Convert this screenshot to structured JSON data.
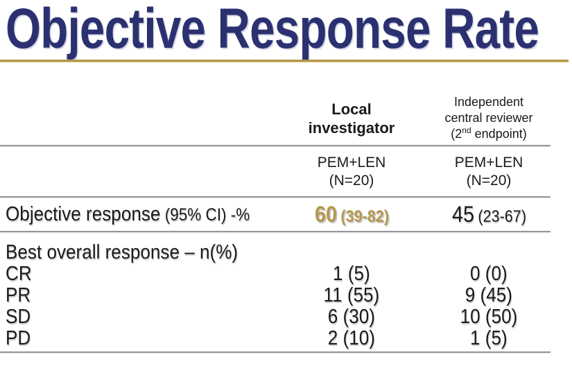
{
  "slide": {
    "title": "Objective Response Rate",
    "colors": {
      "title_navy": "#2b3170",
      "gold_line": "#b2964a",
      "gold_value": "#b5974e",
      "table_line_gray": "#979797"
    }
  },
  "table": {
    "col_headers": {
      "local": {
        "line1": "Local",
        "line2": "investigator"
      },
      "central": {
        "line1": "Independent",
        "line2": "central reviewer",
        "line3_pre": "(2",
        "line3_sup": "nd",
        "line3_post": " endpoint)"
      }
    },
    "subheaders": {
      "local": {
        "line1": "PEM+LEN",
        "line2": "(N=20)"
      },
      "central": {
        "line1": "PEM+LEN",
        "line2": "(N=20)"
      }
    },
    "orr_row": {
      "label_main": "Objective response",
      "label_detail": "(95% CI) -%",
      "local_value": "60",
      "local_ci": "(39-82)",
      "central_value": "45",
      "central_ci": "(23-67)"
    },
    "best_response": {
      "section_label": "Best overall response – n(%)",
      "rows": [
        {
          "label": "CR",
          "local": "1 (5)",
          "central": "0 (0)"
        },
        {
          "label": "PR",
          "local": "11 (55)",
          "central": "9 (45)"
        },
        {
          "label": "SD",
          "local": "6 (30)",
          "central": "10 (50)"
        },
        {
          "label": "PD",
          "local": "2 (10)",
          "central": "1 (5)"
        }
      ]
    }
  }
}
